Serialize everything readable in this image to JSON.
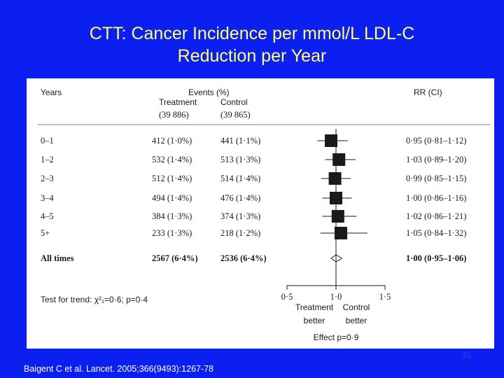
{
  "slide": {
    "title_line1": "CTT: Cancer Incidence per mmol/L LDL-C",
    "title_line2": "Reduction per Year",
    "citation": "Baigent C et al. Lancet. 2005;366(9493):1267-78",
    "slide_number": "31"
  },
  "colors": {
    "background": "#0a1ff0",
    "title": "#ffff66",
    "panel": "#ffffff",
    "ink": "#1a1a1a"
  },
  "table": {
    "col_years": "Years",
    "col_events": "Events (%)",
    "col_treatment": "Treatment",
    "col_treatment_n": "(39 886)",
    "col_control": "Control",
    "col_control_n": "(39 865)",
    "col_rr": "RR (CI)",
    "test_for_trend": "Test for trend: χ²₁=0·6; p=0·4"
  },
  "chart_data": {
    "type": "forest",
    "rows": [
      {
        "label": "0–1",
        "treatment": "412 (1·0%)",
        "control": "441 (1·1%)",
        "rr": 0.95,
        "ci": [
          0.81,
          1.12
        ],
        "rr_text": "0·95 (0·81–1·12)",
        "bold": false,
        "summary": false
      },
      {
        "label": "1–2",
        "treatment": "532 (1·4%)",
        "control": "513 (1·3%)",
        "rr": 1.03,
        "ci": [
          0.89,
          1.2
        ],
        "rr_text": "1·03 (0·89–1·20)",
        "bold": false,
        "summary": false
      },
      {
        "label": "2–3",
        "treatment": "512 (1·4%)",
        "control": "514 (1·4%)",
        "rr": 0.99,
        "ci": [
          0.85,
          1.15
        ],
        "rr_text": "0·99 (0·85–1·15)",
        "bold": false,
        "summary": false
      },
      {
        "label": "3–4",
        "treatment": "494 (1·4%)",
        "control": "476 (1·4%)",
        "rr": 1.0,
        "ci": [
          0.86,
          1.16
        ],
        "rr_text": "1·00 (0·86–1·16)",
        "bold": false,
        "summary": false
      },
      {
        "label": "4–5",
        "treatment": "384 (1·3%)",
        "control": "374 (1·3%)",
        "rr": 1.02,
        "ci": [
          0.86,
          1.21
        ],
        "rr_text": "1·02 (0·86–1·21)",
        "bold": false,
        "summary": false
      },
      {
        "label": "5+",
        "treatment": "233 (1·3%)",
        "control": "218 (1·2%)",
        "rr": 1.05,
        "ci": [
          0.84,
          1.32
        ],
        "rr_text": "1·05 (0·84–1·32)",
        "bold": false,
        "summary": false
      },
      {
        "label": "All times",
        "treatment": "2567 (6·4%)",
        "control": "2536 (6·4%)",
        "rr": 1.0,
        "ci": [
          0.95,
          1.06
        ],
        "rr_text": "1·00 (0·95–1·06)",
        "bold": true,
        "summary": true
      }
    ],
    "xlim": [
      0.5,
      1.5
    ],
    "ticks": [
      0.5,
      1.0,
      1.5
    ],
    "tick_labels": [
      "0·5",
      "1·0",
      "1·5"
    ],
    "reference_line": 1.0,
    "favours_left": [
      "Treatment",
      "better"
    ],
    "favours_right": [
      "Control",
      "better"
    ],
    "effect_text": "Effect p=0·9"
  }
}
